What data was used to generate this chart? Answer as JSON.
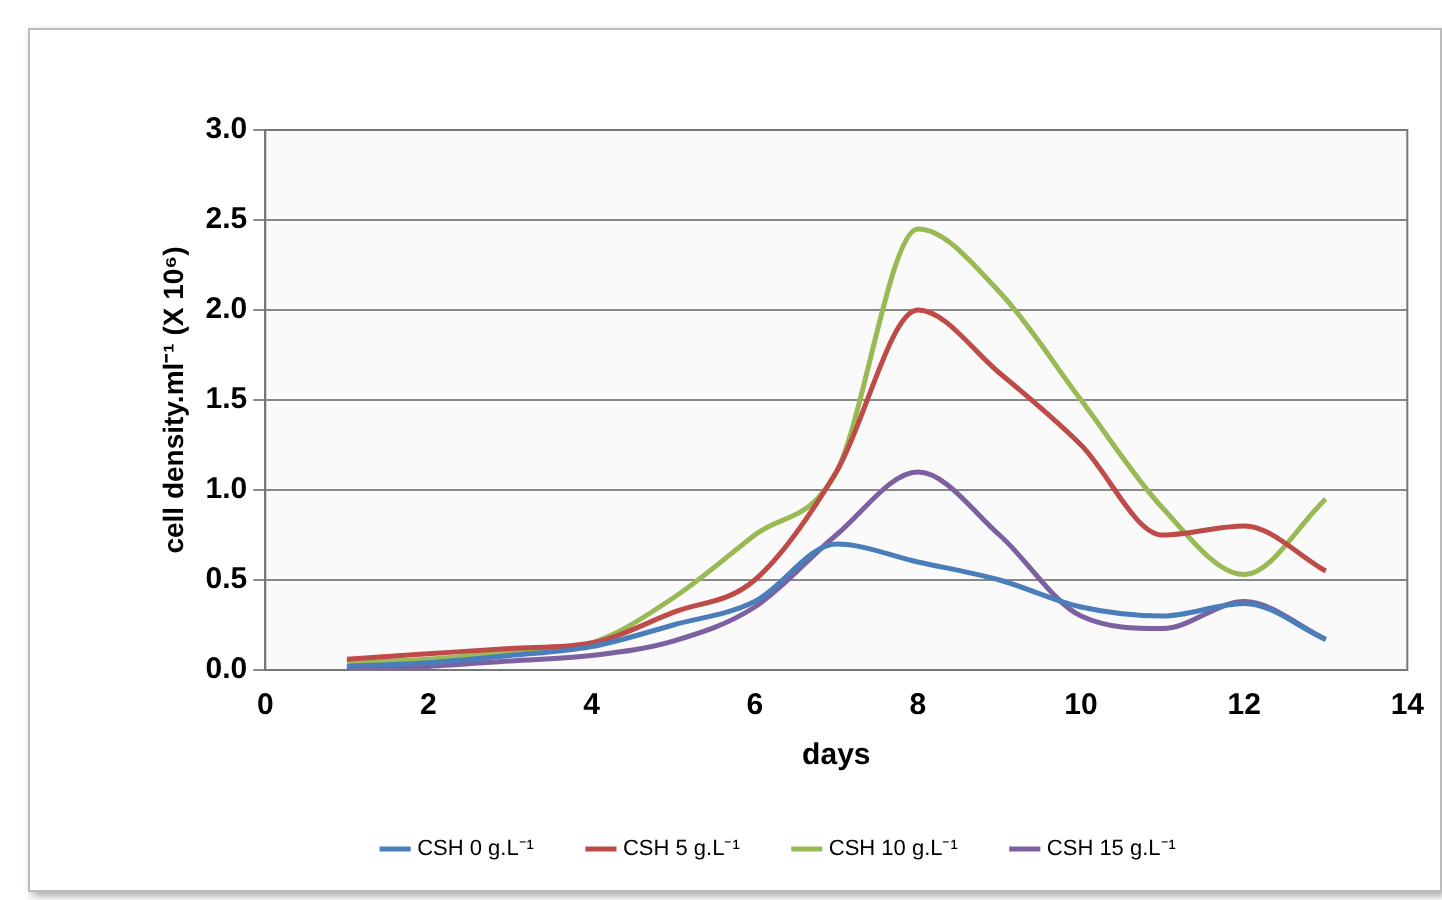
{
  "chart_data": {
    "type": "line",
    "xlabel": "days",
    "ylabel": "cell density.ml⁻¹ (X 10⁶)",
    "x": [
      1,
      2,
      3,
      4,
      5,
      6,
      7,
      8,
      9,
      10,
      11,
      12,
      13
    ],
    "series": [
      {
        "name": "CSH 0 g.L⁻¹",
        "color": "#4a7ebb",
        "values": [
          0.02,
          0.04,
          0.08,
          0.13,
          0.25,
          0.38,
          0.7,
          0.6,
          0.5,
          0.35,
          0.3,
          0.37,
          0.17
        ]
      },
      {
        "name": "CSH 5 g.L⁻¹",
        "color": "#be4b48",
        "values": [
          0.06,
          0.09,
          0.12,
          0.15,
          0.32,
          0.5,
          1.1,
          2.0,
          1.65,
          1.25,
          0.75,
          0.8,
          0.55
        ]
      },
      {
        "name": "CSH 10 g.L⁻¹",
        "color": "#98b954",
        "values": [
          0.04,
          0.06,
          0.1,
          0.15,
          0.4,
          0.75,
          1.1,
          2.45,
          2.1,
          1.5,
          0.9,
          0.53,
          0.95
        ]
      },
      {
        "name": "CSH 15 g.L⁻¹",
        "color": "#7d60a0",
        "values": [
          0.0,
          0.02,
          0.05,
          0.08,
          0.16,
          0.35,
          0.75,
          1.1,
          0.75,
          0.3,
          0.23,
          0.38,
          0.17
        ]
      }
    ],
    "xlim": [
      0,
      14
    ],
    "xticks": [
      0,
      2,
      4,
      6,
      8,
      10,
      12,
      14
    ],
    "ylim": [
      0,
      3
    ],
    "yticks": [
      {
        "value": 0,
        "label": "0.0"
      },
      {
        "value": 0.5,
        "label": "0.5"
      },
      {
        "value": 1,
        "label": "1.0"
      },
      {
        "value": 1.5,
        "label": "1.5"
      },
      {
        "value": 2,
        "label": "2.0"
      },
      {
        "value": 2.5,
        "label": "2.5"
      },
      {
        "value": 3,
        "label": "3.0"
      }
    ],
    "grid": "y",
    "legend": "bottom",
    "marker": "none",
    "line_style": "solid"
  }
}
